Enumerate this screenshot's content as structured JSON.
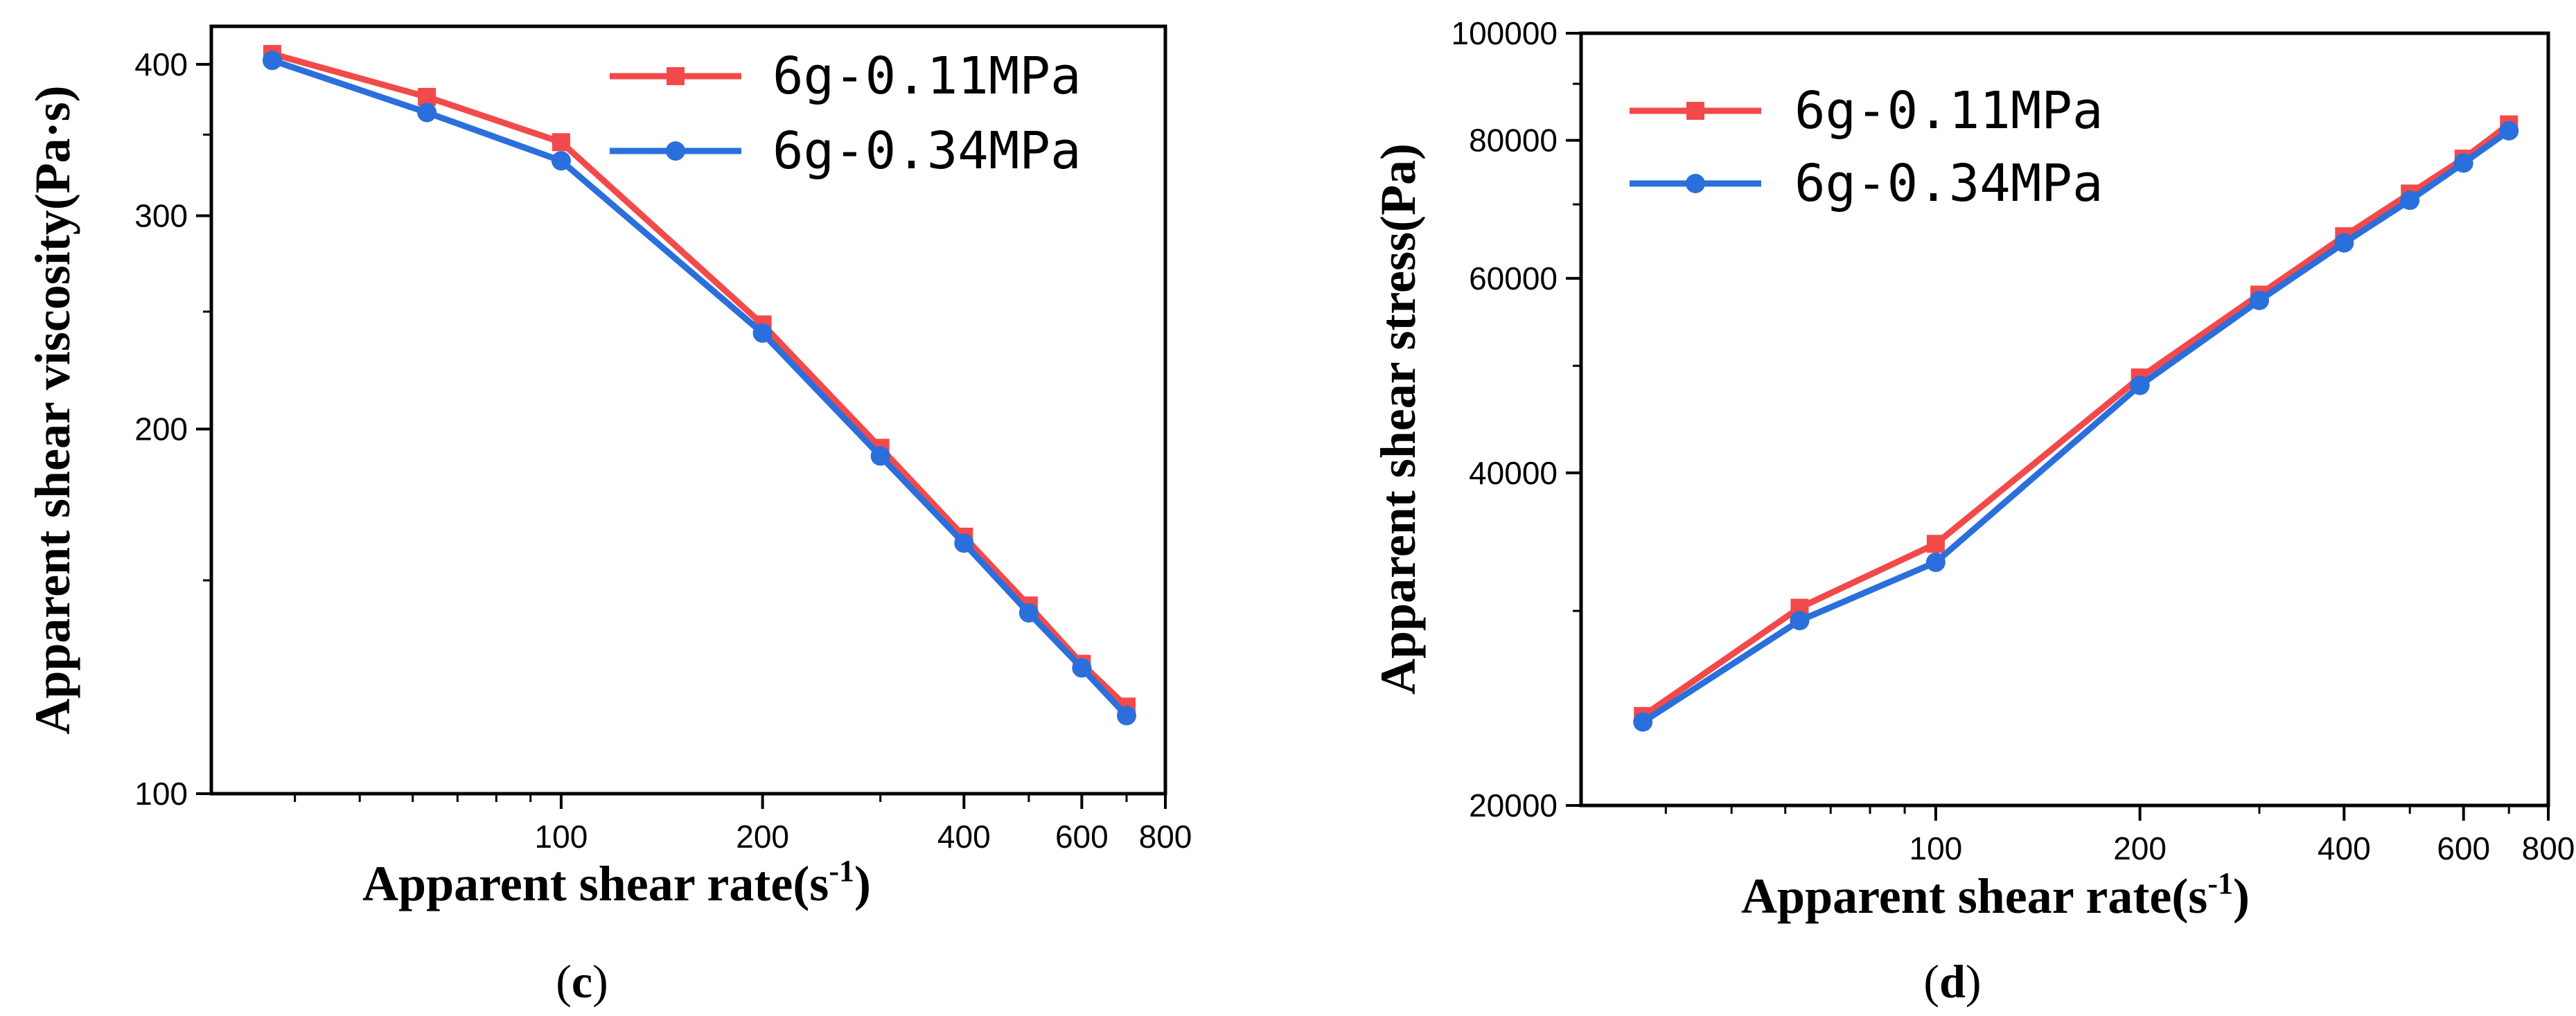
{
  "chart_data": [
    {
      "type": "line",
      "panel_label": "c",
      "xlabel": "Apparent shear rate(s",
      "xlabel_sup": "-1",
      "xlabel_end": ")",
      "ylabel": "Apparent shear viscosity(Pa·s)",
      "x_scale": "log",
      "y_scale": "log",
      "xlim": [
        30,
        800
      ],
      "ylim": [
        100,
        430
      ],
      "x_ticks": [
        100,
        200,
        400,
        600,
        800
      ],
      "x_tick_labels": [
        "100",
        "200",
        "400",
        "600",
        "800"
      ],
      "y_ticks": [
        100,
        200,
        300,
        400
      ],
      "y_tick_labels": [
        "100",
        "200",
        "300",
        "400"
      ],
      "legend_position": "top-right",
      "series": [
        {
          "name": "6g-0.11MPa",
          "color": "#f24a4a",
          "marker": "square",
          "x": [
            37,
            63,
            100,
            200,
            300,
            400,
            500,
            600,
            700
          ],
          "y": [
            408,
            376,
            345,
            244,
            193,
            163,
            143,
            128,
            118
          ]
        },
        {
          "name": "6g-0.34MPa",
          "color": "#2a6fdb",
          "marker": "circle",
          "x": [
            37,
            63,
            100,
            200,
            300,
            400,
            500,
            600,
            700
          ],
          "y": [
            403,
            365,
            333,
            240,
            190,
            161,
            141,
            127,
            116
          ]
        }
      ]
    },
    {
      "type": "line",
      "panel_label": "d",
      "xlabel": "Apparent shear rate(s",
      "xlabel_sup": "-1",
      "xlabel_end": ")",
      "ylabel": "Apparent shear stress(Pa)",
      "x_scale": "log",
      "y_scale": "log",
      "xlim": [
        30,
        800
      ],
      "ylim": [
        20000,
        100000
      ],
      "x_ticks": [
        100,
        200,
        400,
        600,
        800
      ],
      "x_tick_labels": [
        "100",
        "200",
        "400",
        "600",
        "800"
      ],
      "y_ticks": [
        20000,
        40000,
        60000,
        80000,
        100000
      ],
      "y_tick_labels": [
        "20000",
        "40000",
        "60000",
        "80000",
        "100000"
      ],
      "legend_position": "top-left",
      "series": [
        {
          "name": "6g-0.11MPa",
          "color": "#f24a4a",
          "marker": "square",
          "x": [
            37,
            63,
            100,
            200,
            300,
            400,
            500,
            600,
            700
          ],
          "y": [
            24100,
            30200,
            34500,
            48800,
            58000,
            65500,
            71600,
            77000,
            82700
          ]
        },
        {
          "name": "6g-0.34MPa",
          "color": "#2a6fdb",
          "marker": "circle",
          "x": [
            37,
            63,
            100,
            200,
            300,
            400,
            500,
            600,
            700
          ],
          "y": [
            23800,
            29400,
            33200,
            48000,
            57300,
            64600,
            70600,
            76300,
            81600
          ]
        }
      ]
    }
  ]
}
